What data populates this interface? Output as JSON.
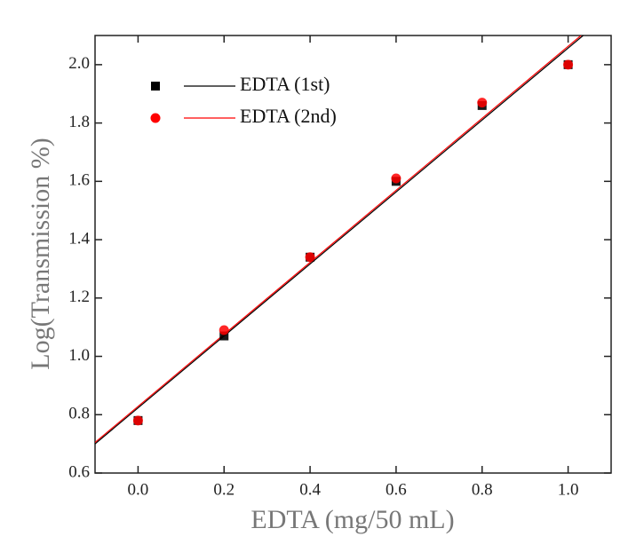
{
  "chart_data": {
    "type": "scatter",
    "x_label": "EDTA (mg/50 mL)",
    "y_label": "Log(Transmission %)",
    "x": [
      0,
      0.2,
      0.4,
      0.6,
      0.8,
      1.0
    ],
    "series": [
      {
        "name": "EDTA (1st)",
        "color": "#000000",
        "marker": "square",
        "values": [
          0.78,
          1.07,
          1.34,
          1.6,
          1.86,
          2.0
        ],
        "fit": {
          "x": [
            -0.1,
            1.035
          ],
          "values": [
            0.7,
            2.1
          ]
        }
      },
      {
        "name": "EDTA (2nd)",
        "color": "#ff0000",
        "marker": "circle",
        "values": [
          0.78,
          1.09,
          1.34,
          1.61,
          1.87,
          2.0
        ],
        "fit": {
          "x": [
            -0.1,
            1.03
          ],
          "values": [
            0.705,
            2.1
          ]
        }
      }
    ],
    "xlim": [
      -0.1,
      1.1
    ],
    "ylim": [
      0.6,
      2.1
    ],
    "xticks": [
      {
        "value": 0,
        "label": "0.0"
      },
      0.2,
      0.4,
      0.6,
      0.8,
      {
        "value": 1,
        "label": "1.0"
      }
    ],
    "yticks": [
      0.6,
      0.8,
      {
        "value": 1,
        "label": "1.0"
      },
      1.2,
      1.4,
      1.6,
      1.8,
      {
        "value": 2,
        "label": "2.0"
      }
    ],
    "legend": "upper-left"
  }
}
